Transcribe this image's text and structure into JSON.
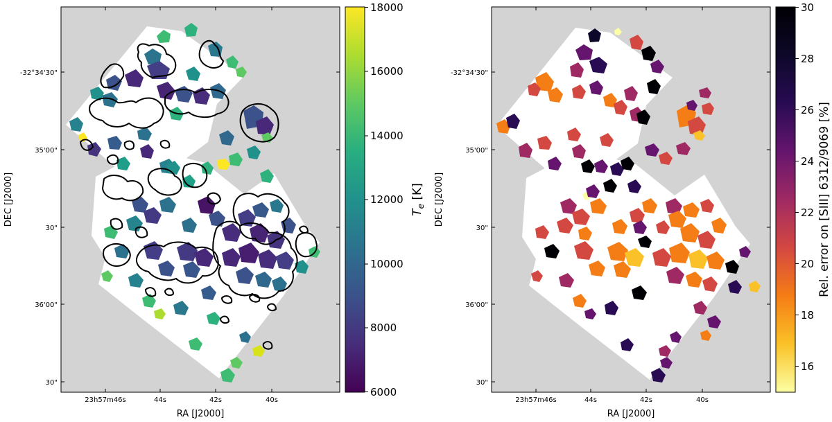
{
  "chart_data": [
    {
      "type": "heatmap",
      "title": "",
      "xlabel": "RA [J2000]",
      "ylabel": "DEC [J2000]",
      "x_ticks": [
        "23h57m46s",
        "44s",
        "42s",
        "40s"
      ],
      "y_ticks": [
        "-32°34'30\"",
        "35'00\"",
        "30\"",
        "36'00\"",
        "30\""
      ],
      "colormap": "viridis",
      "colorbar": {
        "label": "T_e [K]",
        "label_main": "T",
        "label_sub": "e",
        "label_unit": " [K]",
        "min": 6000,
        "max": 18000,
        "ticks": [
          "18000",
          "16000",
          "14000",
          "12000",
          "10000",
          "8000",
          "6000"
        ]
      },
      "has_contours": true,
      "contour_color": "#000000"
    },
    {
      "type": "heatmap",
      "title": "",
      "xlabel": "RA [J2000]",
      "ylabel": "DEC [J2000]",
      "x_ticks": [
        "23h57m46s",
        "44s",
        "42s",
        "40s"
      ],
      "y_ticks": [
        "-32°34'30\"",
        "35'00\"",
        "30\"",
        "36'00\"",
        "30\""
      ],
      "colormap": "inferno_r",
      "colorbar": {
        "label": "Rel. error on [SIII] 6312/9069 [%]",
        "min": 15,
        "max": 30,
        "ticks": [
          "30",
          "28",
          "26",
          "24",
          "22",
          "20",
          "18",
          "16"
        ]
      },
      "has_contours": false
    }
  ],
  "colors": {
    "background": "#d3d3d3",
    "frame": "#000000"
  }
}
